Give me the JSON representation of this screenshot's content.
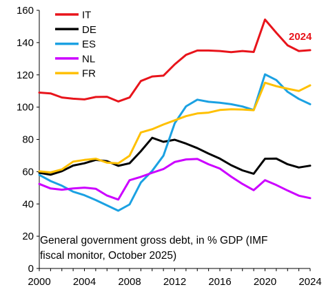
{
  "chart_data": {
    "type": "line",
    "x": [
      2000,
      2001,
      2002,
      2003,
      2004,
      2005,
      2006,
      2007,
      2008,
      2009,
      2010,
      2011,
      2012,
      2013,
      2014,
      2015,
      2016,
      2017,
      2018,
      2019,
      2020,
      2021,
      2022,
      2023,
      2024
    ],
    "series": [
      {
        "name": "IT",
        "color": "#e8141b",
        "values": [
          109,
          108.5,
          106,
          105.2,
          104.8,
          106.3,
          106.4,
          103.5,
          106,
          116.2,
          119,
          119.5,
          126.5,
          132.4,
          135.1,
          135.1,
          134.8,
          134.1,
          134.8,
          134.2,
          154.3,
          146.1,
          138.3,
          134.8,
          135.3
        ]
      },
      {
        "name": "DE",
        "color": "#000000",
        "values": [
          59.3,
          58.1,
          60.3,
          63.8,
          65.2,
          67.3,
          66.5,
          63.6,
          65.2,
          72.7,
          81,
          78.5,
          79.8,
          77.4,
          74.6,
          71.2,
          68.1,
          64,
          60.8,
          58.7,
          68,
          68.1,
          64.6,
          62.6,
          63.7
        ]
      },
      {
        "name": "ES",
        "color": "#1ba1e2",
        "values": [
          58,
          54.2,
          51.3,
          47.6,
          45.4,
          42.4,
          39.1,
          35.8,
          39.7,
          53.3,
          60.5,
          69.9,
          90,
          100.5,
          104.6,
          103.3,
          102.7,
          101.8,
          100.4,
          98.2,
          120.3,
          116.8,
          109.5,
          105.1,
          101.8
        ]
      },
      {
        "name": "NL",
        "color": "#cc00ff",
        "values": [
          52.4,
          49.6,
          48.8,
          49.6,
          50.1,
          49.4,
          45.2,
          42.7,
          54.7,
          56.8,
          59.3,
          61.6,
          66,
          67.6,
          67.9,
          64.6,
          61.9,
          56.9,
          52.4,
          48.5,
          54.7,
          51.7,
          48.3,
          45.1,
          43.6
        ]
      },
      {
        "name": "FR",
        "color": "#ffc000",
        "values": [
          60.2,
          59.5,
          61.4,
          66.2,
          67.3,
          68,
          65.6,
          65.2,
          69.9,
          84.3,
          86.3,
          89.2,
          91.8,
          94.4,
          96.1,
          96.6,
          98.2,
          98.7,
          98.5,
          98.1,
          115.1,
          113,
          111.4,
          110,
          113.5
        ]
      }
    ],
    "xlim": [
      2000,
      2024
    ],
    "ylim": [
      0,
      160
    ],
    "xticks": [
      2000,
      2004,
      2008,
      2012,
      2016,
      2020,
      2024
    ],
    "yticks": [
      0,
      20,
      40,
      60,
      80,
      100,
      120,
      140,
      160
    ],
    "grid": false,
    "legend_position": "top-left",
    "annotation": "2024",
    "annotation_color": "#e8141b",
    "note_line1": "General government gross debt, in % GDP (IMF",
    "note_line2": "fiscal monitor, October 2025)"
  }
}
